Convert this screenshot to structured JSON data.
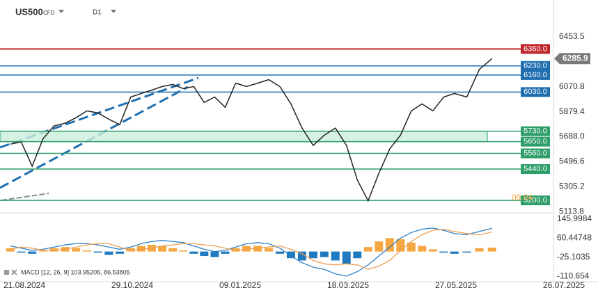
{
  "chart_data": [
    {
      "type": "line",
      "symbol": "US500",
      "symbol_type": "CFD",
      "timeframe": "D1",
      "x": [
        "12.08.2024",
        "19.08.2024",
        "26.08.2024",
        "02.09.2024",
        "09.09.2024",
        "16.09.2024",
        "23.09.2024",
        "30.09.2024",
        "07.10.2024",
        "14.10.2024",
        "21.10.2024",
        "28.10.2024",
        "04.11.2024",
        "11.11.2024",
        "18.11.2024",
        "25.11.2024",
        "02.12.2024",
        "09.12.2024",
        "16.12.2024",
        "23.12.2024",
        "30.12.2024",
        "06.01.2025",
        "13.01.2025",
        "20.01.2025",
        "27.01.2025",
        "03.02.2025",
        "10.02.2025",
        "17.02.2025",
        "24.02.2025",
        "03.03.2025",
        "10.03.2025",
        "17.03.2025",
        "24.03.2025",
        "31.03.2025",
        "07.04.2025",
        "14.04.2025",
        "21.04.2025",
        "28.04.2025",
        "05.05.2025",
        "12.05.2025",
        "19.05.2025",
        "26.05.2025",
        "02.06.2025",
        "09.06.2025",
        "16.06.2025"
      ],
      "series": [
        {
          "color": "#222222",
          "values": [
            5631,
            5647,
            5462,
            5674,
            5770,
            5791,
            5833,
            5886,
            5870,
            5822,
            5780,
            5992,
            6019,
            6045,
            6072,
            6088,
            6056,
            6072,
            5950,
            5992,
            5913,
            6098,
            6072,
            6098,
            6125,
            6072,
            5939,
            5754,
            5621,
            5700,
            5754,
            5621,
            5356,
            5197,
            5409,
            5594,
            5700,
            5886,
            5939,
            5886,
            5992,
            6019,
            5992,
            6204,
            6285.9
          ]
        }
      ],
      "last_price": 6285.9,
      "levels": [
        {
          "value": 6360,
          "label": "6360.0",
          "color": "#c0282d"
        },
        {
          "value": 6230,
          "label": "6230.0",
          "color": "#1f6fb0"
        },
        {
          "value": 6160,
          "label": "6160.0",
          "color": "#1f6fb0"
        },
        {
          "value": 6030,
          "label": "6030.0",
          "color": "#1f6fb0"
        },
        {
          "value": 5730,
          "label": "5730.0",
          "color": "#2e9e6a"
        },
        {
          "value": 5650,
          "label": "5650.0",
          "color": "#2e9e6a"
        },
        {
          "value": 5560,
          "label": "5560.0",
          "color": "#2e9e6a"
        },
        {
          "value": 5440,
          "label": "5440.0",
          "color": "#2e9e6a"
        },
        {
          "value": 5200,
          "label": "5200.0",
          "color": "#2e9e6a"
        }
      ],
      "annotation": "09.04",
      "ylim": [
        5110,
        6735
      ],
      "yticks": [
        6453.5,
        6070.8,
        5879.4,
        {
          "value": 5688.0,
          "label": "5688.0"
        },
        5496.6,
        5305.2,
        5113.8
      ]
    },
    {
      "type": "macd",
      "title": "MACD [12, 26, 9] 103.95205, 86.53805",
      "x": [
        "12.08.2024",
        "19.08.2024",
        "26.08.2024",
        "02.09.2024",
        "09.09.2024",
        "16.09.2024",
        "23.09.2024",
        "30.09.2024",
        "07.10.2024",
        "14.10.2024",
        "21.10.2024",
        "28.10.2024",
        "04.11.2024",
        "11.11.2024",
        "18.11.2024",
        "25.11.2024",
        "02.12.2024",
        "09.12.2024",
        "16.12.2024",
        "23.12.2024",
        "30.12.2024",
        "06.01.2025",
        "13.01.2025",
        "20.01.2025",
        "27.01.2025",
        "03.02.2025",
        "10.02.2025",
        "17.02.2025",
        "24.02.2025",
        "03.03.2025",
        "10.03.2025",
        "17.03.2025",
        "24.03.2025",
        "31.03.2025",
        "07.04.2025",
        "14.04.2025",
        "21.04.2025",
        "28.04.2025",
        "05.05.2025",
        "12.05.2025",
        "19.05.2025",
        "26.05.2025",
        "02.06.2025",
        "09.06.2025",
        "16.06.2025"
      ],
      "histogram": {
        "color_up": "#f5a742",
        "color_down": "#1f7ac0",
        "values": [
          15,
          -5,
          -10,
          5,
          15,
          20,
          15,
          5,
          -5,
          -15,
          -10,
          15,
          25,
          30,
          25,
          15,
          5,
          -10,
          -20,
          -25,
          -10,
          15,
          25,
          25,
          15,
          -10,
          -30,
          -40,
          -30,
          -25,
          -40,
          -55,
          -30,
          20,
          45,
          60,
          55,
          40,
          25,
          10,
          -5,
          -10,
          -5,
          15,
          17.414
        ]
      },
      "series": [
        {
          "color": "#2b7fc7",
          "values": [
            25,
            15,
            5,
            10,
            20,
            30,
            35,
            35,
            30,
            20,
            10,
            20,
            35,
            45,
            50,
            45,
            40,
            25,
            10,
            0,
            5,
            20,
            35,
            40,
            35,
            15,
            -20,
            -50,
            -70,
            -80,
            -100,
            -110,
            -90,
            -60,
            -20,
            20,
            60,
            85,
            100,
            105,
            95,
            80,
            75,
            90,
            103.95205
          ]
        },
        {
          "color": "#f0a050",
          "values": [
            10,
            20,
            15,
            5,
            5,
            10,
            20,
            30,
            35,
            35,
            20,
            5,
            10,
            15,
            25,
            30,
            35,
            35,
            30,
            25,
            15,
            5,
            10,
            15,
            20,
            25,
            10,
            -10,
            -40,
            -55,
            -60,
            -55,
            -60,
            -80,
            -65,
            -40,
            5,
            45,
            75,
            95,
            100,
            90,
            80,
            75,
            86.53805
          ]
        }
      ],
      "ylim": [
        -135,
        170
      ],
      "yticks": [
        145.9984,
        60.44748,
        -25.1035,
        -110.654
      ],
      "xticks": [
        "21.08.2024",
        "29.10.2024",
        "09.01.2025",
        "18.03.2025",
        "27.05.2025",
        "26.07.2025"
      ]
    }
  ]
}
